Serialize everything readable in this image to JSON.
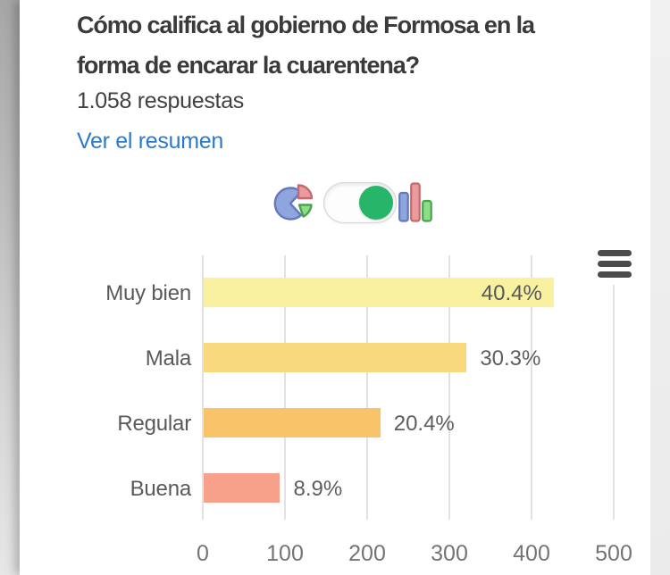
{
  "header": {
    "title": "Cómo califica al gobierno de Formosa en la forma de encarar la cuarentena?",
    "title_lines": [
      "Cómo califica al gobierno de Formosa en la",
      "forma de encarar la cuarentena?"
    ],
    "responses": "1.058 respuestas",
    "summary_link": "Ver el resumen"
  },
  "controls": {
    "pie_icon": "pie-chart-view",
    "toggle_state": "on",
    "bar_icon": "bar-chart-view",
    "menu_icon": "chart-options-menu"
  },
  "chart_data": {
    "type": "bar",
    "orientation": "horizontal",
    "title": "",
    "xlabel": "",
    "ylabel": "",
    "categories": [
      "Muy bien",
      "Mala",
      "Regular",
      "Buena"
    ],
    "values_percent": [
      40.4,
      30.3,
      20.4,
      8.9
    ],
    "value_labels": [
      "40.4%",
      "30.3%",
      "20.4%",
      "8.9%"
    ],
    "values_responses_est": [
      427,
      321,
      216,
      94
    ],
    "total_responses": 1058,
    "x_ticks": [
      0,
      100,
      200,
      300,
      400,
      500
    ],
    "xlim": [
      0,
      500
    ],
    "grid": true,
    "legend_position": "none",
    "value_label_position": [
      "inside",
      "outside",
      "outside",
      "outside"
    ],
    "bar_colors": [
      "#F8F1A0",
      "#F8D97E",
      "#F9C469",
      "#F8A18A"
    ]
  },
  "colors": {
    "link_blue": "#2c7ac9",
    "toggle_on_green": "#26b569",
    "gridline": "#e2e2e6",
    "title_text": "#3a3a3a",
    "icon_blue": "#8fa5dd",
    "icon_red": "#e99b9e",
    "icon_green": "#8edd89"
  }
}
